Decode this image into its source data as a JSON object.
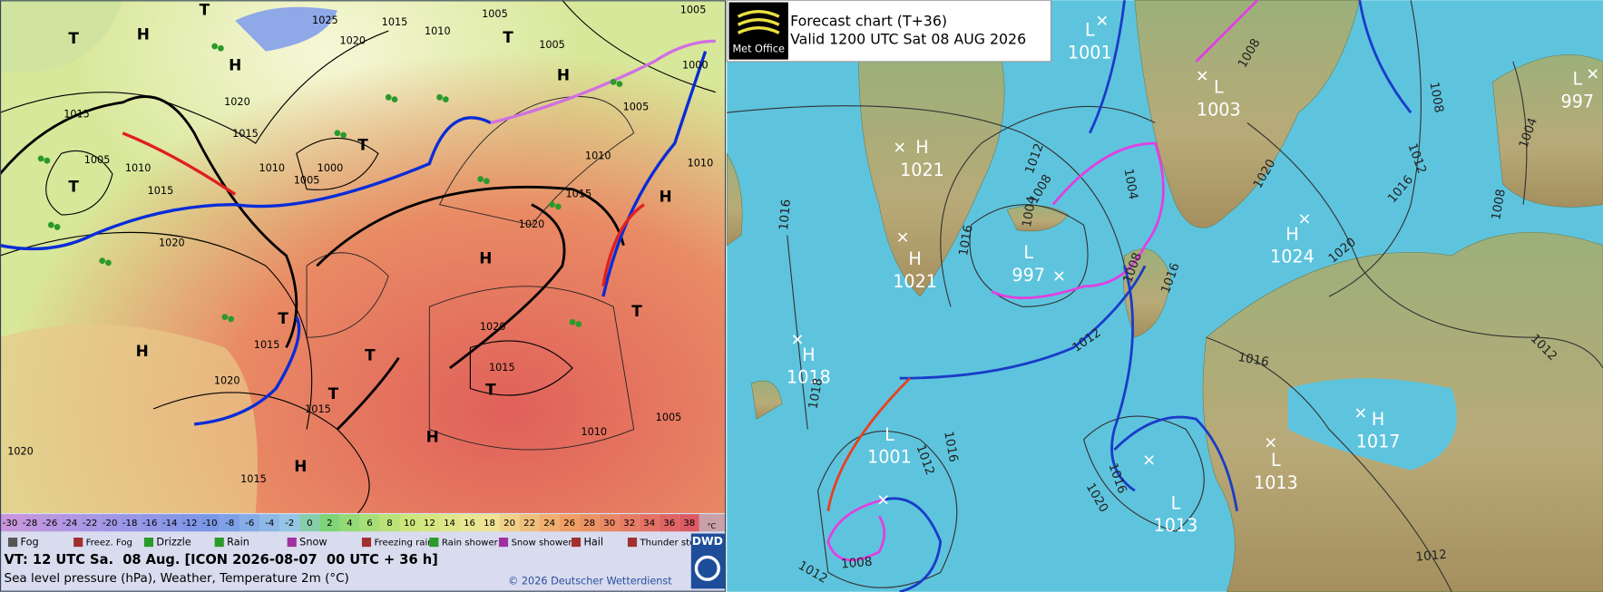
{
  "dwd": {
    "color_scale": [
      "-30",
      "-28",
      "-26",
      "-24",
      "-22",
      "-20",
      "-18",
      "-16",
      "-14",
      "-12",
      "-10",
      "-8",
      "-6",
      "-4",
      "-2",
      "0",
      "2",
      "4",
      "6",
      "8",
      "10",
      "12",
      "14",
      "16",
      "18",
      "20",
      "22",
      "24",
      "26",
      "28",
      "30",
      "32",
      "34",
      "36",
      "38"
    ],
    "scale_unit": "°C",
    "legend": [
      "Fog",
      "Freez. Fog",
      "Drizzle",
      "Rain",
      "Snow",
      "Freezing rain",
      "Rain shower",
      "Snow shower",
      "Hail",
      "Thunder storm"
    ],
    "valid_time": "VT: 12 UTC Sa.  08 Aug. [ICON 2026-08-07  00 UTC + 36 h]",
    "description": "Sea level pressure (hPa), Weather, Temperature 2m (°C)",
    "copyright": "© 2026 Deutscher Wetterdienst",
    "logo": "DWD",
    "isobar_labels": [
      "1025",
      "1015",
      "1010",
      "1005",
      "1005",
      "1020",
      "1005",
      "1000",
      "1005",
      "1015",
      "1020",
      "1015",
      "1005",
      "1010",
      "1010",
      "1000",
      "1005",
      "1010",
      "1010",
      "1015",
      "1015",
      "1020",
      "1020",
      "1020",
      "1015",
      "1015",
      "1020",
      "1015",
      "1010",
      "1005",
      "1020",
      "1015"
    ],
    "centers": [
      "H",
      "T",
      "T",
      "H",
      "T",
      "H",
      "T",
      "T",
      "H",
      "H",
      "T",
      "H",
      "T",
      "T",
      "T",
      "T",
      "H",
      "H"
    ]
  },
  "metoffice": {
    "logo": "Met Office",
    "title": "Forecast chart (T+36)",
    "valid": "Valid 1200 UTC Sat 08 AUG 2026",
    "centers": [
      {
        "type": "L",
        "pressure": "1001"
      },
      {
        "type": "L",
        "pressure": "1003"
      },
      {
        "type": "L",
        "pressure": "997"
      },
      {
        "type": "H",
        "pressure": "1021"
      },
      {
        "type": "H",
        "pressure": "1021"
      },
      {
        "type": "H",
        "pressure": "1024"
      },
      {
        "type": "L",
        "pressure": "997"
      },
      {
        "type": "H",
        "pressure": "1018"
      },
      {
        "type": "L",
        "pressure": "1001"
      },
      {
        "type": "L",
        "pressure": "1013"
      },
      {
        "type": "L",
        "pressure": "1013"
      },
      {
        "type": "H",
        "pressure": "1017"
      }
    ],
    "isobar_labels": [
      "1008",
      "1008",
      "1004",
      "1012",
      "1016",
      "1020",
      "1008",
      "1020",
      "1012",
      "1008",
      "1004",
      "1016",
      "1016",
      "1004",
      "1008",
      "1016",
      "1012",
      "1018",
      "1016",
      "1012",
      "1012",
      "1016",
      "1020",
      "1016",
      "1012",
      "1008",
      "1012"
    ]
  }
}
